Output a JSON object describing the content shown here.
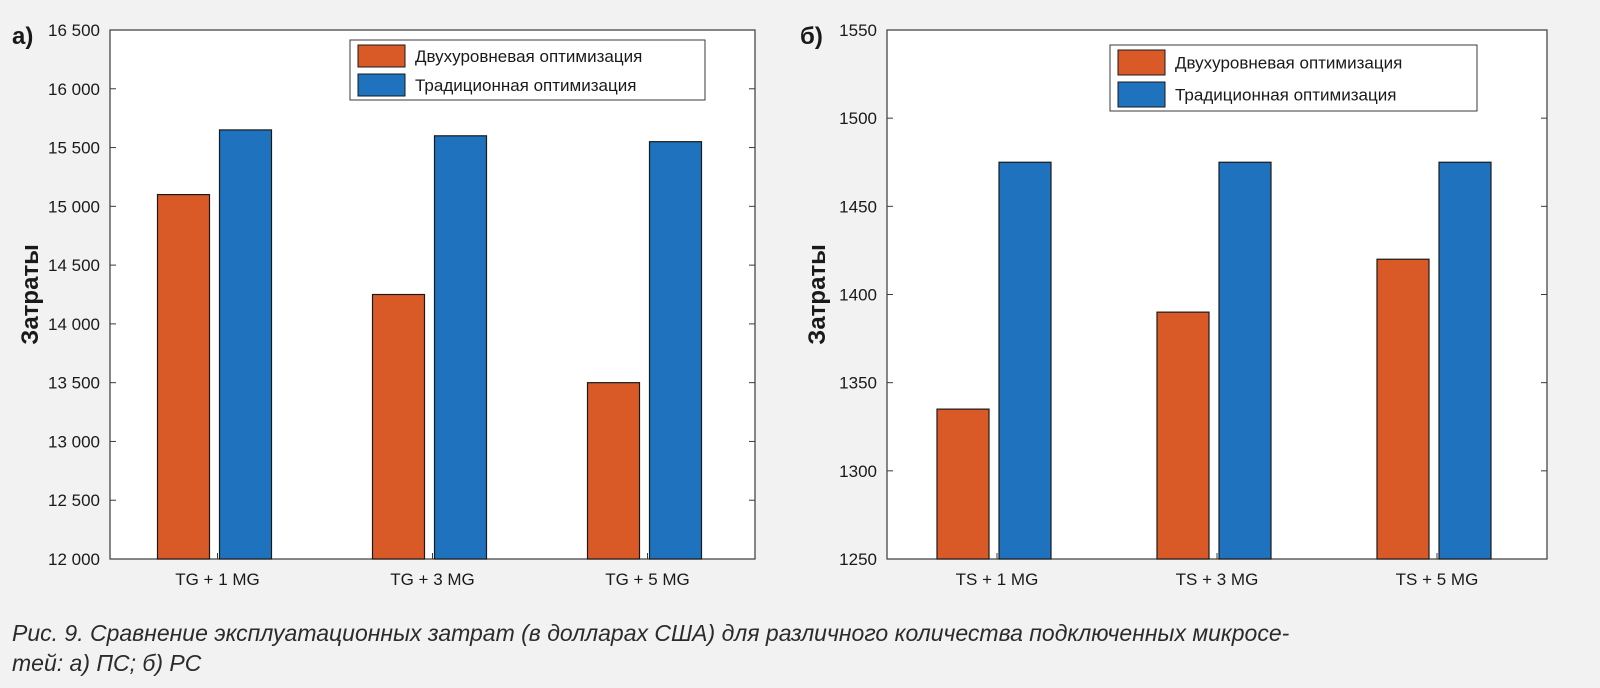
{
  "chart_data": [
    {
      "type": "bar",
      "panel_label": "а)",
      "categories": [
        "TG + 1 MG",
        "TG + 3 MG",
        "TG + 5 MG"
      ],
      "series": [
        {
          "name": "Двухуровневая оптимизация",
          "values": [
            15100,
            14250,
            13500
          ]
        },
        {
          "name": "Традиционная оптимизация",
          "values": [
            15650,
            15600,
            15550
          ]
        }
      ],
      "ylabel": "Затраты",
      "xlabel": "",
      "ylim": [
        12000,
        16500
      ],
      "yticks": [
        12000,
        12500,
        13000,
        13500,
        14000,
        14500,
        15000,
        15500,
        16000,
        16500
      ],
      "ytick_labels": [
        "12 000",
        "12 500",
        "13 000",
        "13 500",
        "14 000",
        "14 500",
        "15 000",
        "15 500",
        "16 000",
        "16 500"
      ],
      "legend_position": "top-right",
      "grid": false
    },
    {
      "type": "bar",
      "panel_label": "б)",
      "categories": [
        "TS + 1 MG",
        "TS + 3 MG",
        "TS + 5 MG"
      ],
      "series": [
        {
          "name": "Двухуровневая оптимизация",
          "values": [
            1335,
            1390,
            1420
          ]
        },
        {
          "name": "Традиционная оптимизация",
          "values": [
            1475,
            1475,
            1475
          ]
        }
      ],
      "ylabel": "Затраты",
      "xlabel": "",
      "ylim": [
        1250,
        1550
      ],
      "yticks": [
        1250,
        1300,
        1350,
        1400,
        1450,
        1500,
        1550
      ],
      "ytick_labels": [
        "1250",
        "1300",
        "1350",
        "1400",
        "1450",
        "1500",
        "1550"
      ],
      "legend_position": "top-right",
      "grid": false
    }
  ],
  "colors": {
    "series": [
      "#d95a27",
      "#1f72bd"
    ],
    "axis": "#3a3a3a",
    "plot_bg": "#ffffff"
  },
  "caption": {
    "line1": "Рис. 9. Сравнение эксплуатационных затрат (в долларах США) для различного количества подключенных микросе-",
    "line2": "тей: а) ПС; б) РС"
  }
}
